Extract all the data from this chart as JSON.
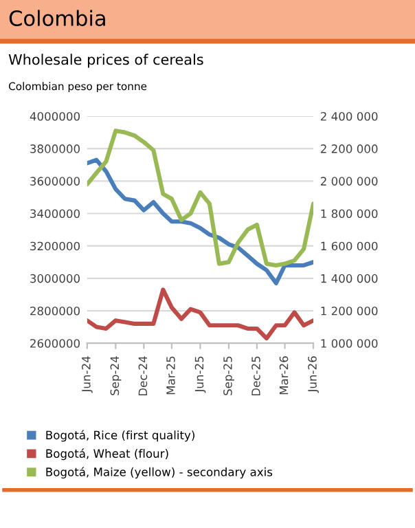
{
  "chart_data": {
    "type": "line",
    "title": "Colombia",
    "subtitle": "Wholesale prices of cereals",
    "ylabel": "Colombian peso per tonne",
    "x": [
      "2024-06",
      "2024-07",
      "2024-08",
      "2024-09",
      "2024-10",
      "2024-11",
      "2024-12",
      "2025-01",
      "2025-02",
      "2025-03",
      "2025-04",
      "2025-05",
      "2025-06",
      "2025-07",
      "2025-08",
      "2025-09",
      "2025-10",
      "2025-11",
      "2025-12",
      "2026-01",
      "2026-02",
      "2026-03",
      "2026-04",
      "2026-05",
      "2026-06"
    ],
    "series": [
      {
        "name": "Bogotá, Rice (first quality)",
        "color": "#4a7ebb",
        "values": [
          3710000,
          3730000,
          3660000,
          3550000,
          3490000,
          3480000,
          3420000,
          3470000,
          3400000,
          3350000,
          3350000,
          3340000,
          3310000,
          3270000,
          3250000,
          3210000,
          3190000,
          3140000,
          3090000,
          3050000,
          2970000,
          3080000,
          3080000,
          3080000,
          3100000
        ]
      },
      {
        "name": "Bogotá, Wheat (flour)",
        "color": "#be4b48",
        "values": [
          2740000,
          2700000,
          2690000,
          2740000,
          2730000,
          2720000,
          2720000,
          2720000,
          2930000,
          2820000,
          2750000,
          2810000,
          2790000,
          2710000,
          2710000,
          2710000,
          2710000,
          2690000,
          2690000,
          2630000,
          2710000,
          2710000,
          2790000,
          2710000,
          2740000
        ]
      },
      {
        "name": "Bogotá, Maize (yellow) - secondary axis",
        "color": "#98b954",
        "axis": "y2",
        "values": [
          1980000,
          2050000,
          2120000,
          2310000,
          2300000,
          2280000,
          2240000,
          2190000,
          1920000,
          1890000,
          1760000,
          1800000,
          1930000,
          1860000,
          1490000,
          1500000,
          1620000,
          1700000,
          1730000,
          1490000,
          1480000,
          1490000,
          1510000,
          1580000,
          1860000
        ]
      }
    ],
    "xlim": [
      "2024-06",
      "2026-06"
    ],
    "xticks": [
      {
        "value": "2024-06",
        "label": "Jun-24"
      },
      {
        "value": "2024-09",
        "label": "Sep-24"
      },
      {
        "value": "2024-12",
        "label": "Dec-24"
      },
      {
        "value": "2025-03",
        "label": "Mar-25"
      },
      {
        "value": "2025-06",
        "label": "Jun-25"
      },
      {
        "value": "2025-09",
        "label": "Sep-25"
      },
      {
        "value": "2025-12",
        "label": "Dec-25"
      },
      {
        "value": "2026-03",
        "label": "Mar-26"
      },
      {
        "value": "2026-06",
        "label": "Jun-26"
      }
    ],
    "ylim": [
      2600000,
      4000000
    ],
    "yticks": [
      2600000,
      2800000,
      3000000,
      3200000,
      3400000,
      3600000,
      3800000,
      4000000
    ],
    "y2lim": [
      1000000,
      2400000
    ],
    "y2ticks": [
      {
        "value": 1000000,
        "label": "1 000 000"
      },
      {
        "value": 1200000,
        "label": "1 200 000"
      },
      {
        "value": 1400000,
        "label": "1 400 000"
      },
      {
        "value": 1600000,
        "label": "1 600 000"
      },
      {
        "value": 1800000,
        "label": "1 800 000"
      },
      {
        "value": 2000000,
        "label": "2 000 000"
      },
      {
        "value": 2200000,
        "label": "2 200 000"
      },
      {
        "value": 2400000,
        "label": "2 400 000"
      }
    ],
    "grid": "y",
    "legend": "bottom",
    "marker": "none",
    "line_style": "solid"
  }
}
